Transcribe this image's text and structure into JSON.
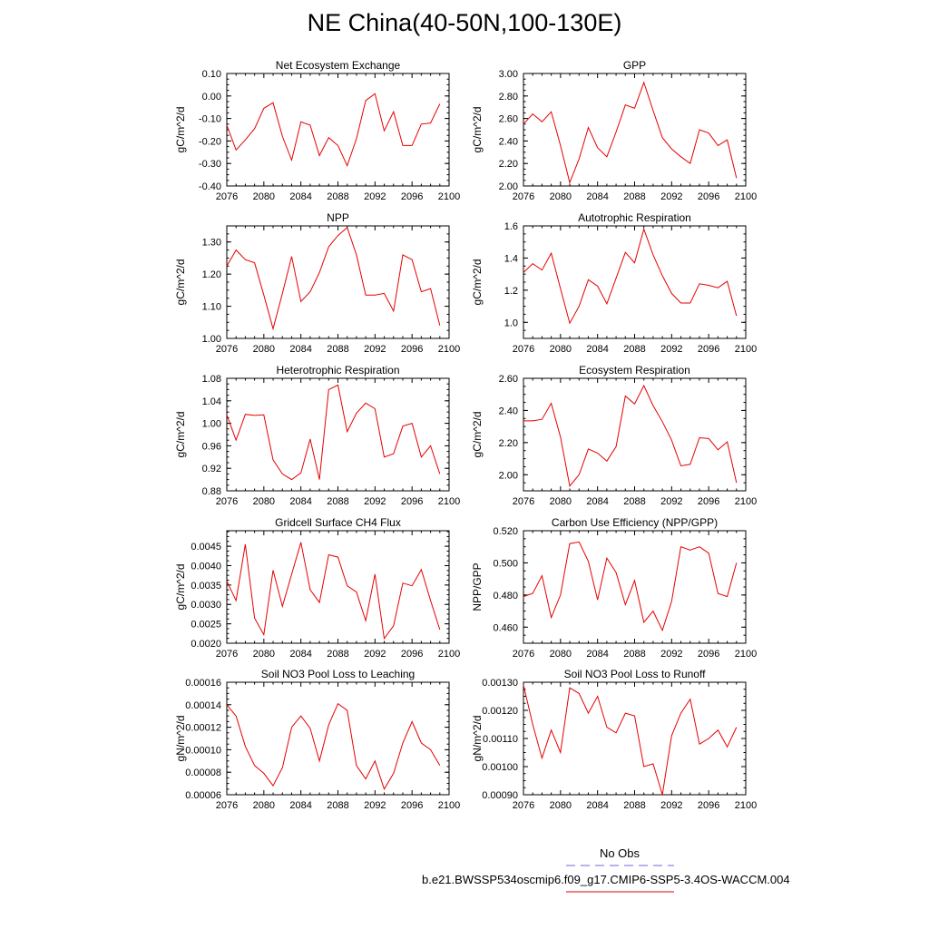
{
  "page": {
    "title": "NE China(40-50N,100-130E)"
  },
  "legend": {
    "obs_label": "No Obs",
    "obs_color": "#6b6bd6",
    "model_label": "b.e21.BWSSP534oscmip6.f09_g17.CMIP6-SSP5-3.4OS-WACCM.004",
    "model_color": "#e60000"
  },
  "chart_data": [
    {
      "type": "line",
      "title": "Net Ecosystem Exchange",
      "ylabel": "gC/m^2/d",
      "xlim": [
        2076,
        2100
      ],
      "xticks": [
        "2076",
        "2080",
        "2084",
        "2088",
        "2092",
        "2096",
        "2100"
      ],
      "ylim": [
        -0.4,
        0.1
      ],
      "yticks": [
        "-0.40",
        "-0.30",
        "-0.20",
        "-0.10",
        "0.00",
        "0.10"
      ],
      "x": [
        2076,
        2077,
        2078,
        2079,
        2080,
        2081,
        2082,
        2083,
        2084,
        2085,
        2086,
        2087,
        2088,
        2089,
        2090,
        2091,
        2092,
        2093,
        2094,
        2095,
        2096,
        2097,
        2098,
        2099
      ],
      "series": [
        {
          "values": [
            -0.13,
            -0.24,
            -0.195,
            -0.145,
            -0.055,
            -0.03,
            -0.18,
            -0.285,
            -0.115,
            -0.13,
            -0.265,
            -0.185,
            -0.22,
            -0.31,
            -0.19,
            -0.02,
            0.01,
            -0.155,
            -0.07,
            -0.22,
            -0.22,
            -0.125,
            -0.12,
            -0.035
          ]
        }
      ]
    },
    {
      "type": "line",
      "title": "GPP",
      "ylabel": "gC/m^2/d",
      "xlim": [
        2076,
        2100
      ],
      "xticks": [
        "2076",
        "2080",
        "2084",
        "2088",
        "2092",
        "2096",
        "2100"
      ],
      "ylim": [
        2.0,
        3.0
      ],
      "yticks": [
        "2.00",
        "2.20",
        "2.40",
        "2.60",
        "2.80",
        "3.00"
      ],
      "x": [
        2076,
        2077,
        2078,
        2079,
        2080,
        2081,
        2082,
        2083,
        2084,
        2085,
        2086,
        2087,
        2088,
        2089,
        2090,
        2091,
        2092,
        2093,
        2094,
        2095,
        2096,
        2097,
        2098,
        2099
      ],
      "series": [
        {
          "values": [
            2.55,
            2.64,
            2.57,
            2.66,
            2.36,
            2.03,
            2.24,
            2.52,
            2.34,
            2.26,
            2.48,
            2.72,
            2.69,
            2.92,
            2.67,
            2.43,
            2.33,
            2.26,
            2.2,
            2.5,
            2.47,
            2.36,
            2.41,
            2.07
          ]
        }
      ]
    },
    {
      "type": "line",
      "title": "NPP",
      "ylabel": "gC/m^2/d",
      "xlim": [
        2076,
        2100
      ],
      "xticks": [
        "2076",
        "2080",
        "2084",
        "2088",
        "2092",
        "2096",
        "2100"
      ],
      "ylim": [
        1.0,
        1.35
      ],
      "yticks": [
        "1.00",
        "1.10",
        "1.20",
        "1.30"
      ],
      "x": [
        2076,
        2077,
        2078,
        2079,
        2080,
        2081,
        2082,
        2083,
        2084,
        2085,
        2086,
        2087,
        2088,
        2089,
        2090,
        2091,
        2092,
        2093,
        2094,
        2095,
        2096,
        2097,
        2098,
        2099
      ],
      "series": [
        {
          "values": [
            1.225,
            1.275,
            1.245,
            1.235,
            1.135,
            1.03,
            1.14,
            1.255,
            1.115,
            1.145,
            1.205,
            1.285,
            1.32,
            1.345,
            1.26,
            1.135,
            1.135,
            1.14,
            1.085,
            1.26,
            1.245,
            1.145,
            1.155,
            1.04
          ]
        }
      ]
    },
    {
      "type": "line",
      "title": "Autotrophic Respiration",
      "ylabel": "gC/m^2/d",
      "xlim": [
        2076,
        2100
      ],
      "xticks": [
        "2076",
        "2080",
        "2084",
        "2088",
        "2092",
        "2096",
        "2100"
      ],
      "ylim": [
        0.9,
        1.6
      ],
      "yticks": [
        "1.0",
        "1.2",
        "1.4",
        "1.6"
      ],
      "x": [
        2076,
        2077,
        2078,
        2079,
        2080,
        2081,
        2082,
        2083,
        2084,
        2085,
        2086,
        2087,
        2088,
        2089,
        2090,
        2091,
        2092,
        2093,
        2094,
        2095,
        2096,
        2097,
        2098,
        2099
      ],
      "series": [
        {
          "values": [
            1.31,
            1.365,
            1.325,
            1.43,
            1.21,
            0.995,
            1.1,
            1.265,
            1.225,
            1.115,
            1.275,
            1.435,
            1.37,
            1.58,
            1.42,
            1.29,
            1.18,
            1.12,
            1.12,
            1.24,
            1.23,
            1.215,
            1.255,
            1.04
          ]
        }
      ]
    },
    {
      "type": "line",
      "title": "Heterotrophic Respiration",
      "ylabel": "gC/m^2/d",
      "xlim": [
        2076,
        2100
      ],
      "xticks": [
        "2076",
        "2080",
        "2084",
        "2088",
        "2092",
        "2096",
        "2100"
      ],
      "ylim": [
        0.88,
        1.08
      ],
      "yticks": [
        "0.88",
        "0.92",
        "0.96",
        "1.00",
        "1.04",
        "1.08"
      ],
      "x": [
        2076,
        2077,
        2078,
        2079,
        2080,
        2081,
        2082,
        2083,
        2084,
        2085,
        2086,
        2087,
        2088,
        2089,
        2090,
        2091,
        2092,
        2093,
        2094,
        2095,
        2096,
        2097,
        2098,
        2099
      ],
      "series": [
        {
          "values": [
            1.015,
            0.97,
            1.016,
            1.014,
            1.015,
            0.935,
            0.91,
            0.9,
            0.912,
            0.972,
            0.9,
            1.06,
            1.068,
            0.985,
            1.018,
            1.036,
            1.026,
            0.94,
            0.946,
            0.995,
            1.0,
            0.94,
            0.96,
            0.91
          ]
        }
      ]
    },
    {
      "type": "line",
      "title": "Ecosystem Respiration",
      "ylabel": "gC/m^2/d",
      "xlim": [
        2076,
        2100
      ],
      "xticks": [
        "2076",
        "2080",
        "2084",
        "2088",
        "2092",
        "2096",
        "2100"
      ],
      "ylim": [
        1.9,
        2.6
      ],
      "yticks": [
        "2.00",
        "2.20",
        "2.40",
        "2.60"
      ],
      "x": [
        2076,
        2077,
        2078,
        2079,
        2080,
        2081,
        2082,
        2083,
        2084,
        2085,
        2086,
        2087,
        2088,
        2089,
        2090,
        2091,
        2092,
        2093,
        2094,
        2095,
        2096,
        2097,
        2098,
        2099
      ],
      "series": [
        {
          "values": [
            2.335,
            2.335,
            2.345,
            2.445,
            2.235,
            1.93,
            2.0,
            2.16,
            2.135,
            2.085,
            2.175,
            2.49,
            2.44,
            2.555,
            2.43,
            2.33,
            2.215,
            2.055,
            2.065,
            2.23,
            2.225,
            2.155,
            2.205,
            1.95
          ]
        }
      ]
    },
    {
      "type": "line",
      "title": "Gridcell Surface CH4 Flux",
      "ylabel": "gC/m^2/d",
      "xlim": [
        2076,
        2100
      ],
      "xticks": [
        "2076",
        "2080",
        "2084",
        "2088",
        "2092",
        "2096",
        "2100"
      ],
      "ylim": [
        0.002,
        0.0049
      ],
      "yticks": [
        "0.0020",
        "0.0025",
        "0.0030",
        "0.0035",
        "0.0040",
        "0.0045"
      ],
      "x": [
        2076,
        2077,
        2078,
        2079,
        2080,
        2081,
        2082,
        2083,
        2084,
        2085,
        2086,
        2087,
        2088,
        2089,
        2090,
        2091,
        2092,
        2093,
        2094,
        2095,
        2096,
        2097,
        2098,
        2099
      ],
      "series": [
        {
          "values": [
            0.0036,
            0.0031,
            0.00455,
            0.00265,
            0.00222,
            0.00388,
            0.00295,
            0.00378,
            0.0046,
            0.00338,
            0.00305,
            0.00428,
            0.00422,
            0.00348,
            0.00332,
            0.00258,
            0.00378,
            0.00212,
            0.00245,
            0.00355,
            0.00348,
            0.0039,
            0.0031,
            0.00235
          ]
        }
      ]
    },
    {
      "type": "line",
      "title": "Carbon Use Efficiency (NPP/GPP)",
      "ylabel": "NPP/GPP",
      "xlim": [
        2076,
        2100
      ],
      "xticks": [
        "2076",
        "2080",
        "2084",
        "2088",
        "2092",
        "2096",
        "2100"
      ],
      "ylim": [
        0.45,
        0.52
      ],
      "yticks": [
        "0.460",
        "0.480",
        "0.500",
        "0.520"
      ],
      "x": [
        2076,
        2077,
        2078,
        2079,
        2080,
        2081,
        2082,
        2083,
        2084,
        2085,
        2086,
        2087,
        2088,
        2089,
        2090,
        2091,
        2092,
        2093,
        2094,
        2095,
        2096,
        2097,
        2098,
        2099
      ],
      "series": [
        {
          "values": [
            0.479,
            0.481,
            0.492,
            0.466,
            0.48,
            0.512,
            0.513,
            0.501,
            0.477,
            0.503,
            0.494,
            0.474,
            0.489,
            0.463,
            0.47,
            0.458,
            0.476,
            0.51,
            0.508,
            0.51,
            0.506,
            0.481,
            0.479,
            0.5
          ]
        }
      ]
    },
    {
      "type": "line",
      "title": "Soil NO3 Pool Loss to Leaching",
      "ylabel": "gN/m^2/d",
      "xlim": [
        2076,
        2100
      ],
      "xticks": [
        "2076",
        "2080",
        "2084",
        "2088",
        "2092",
        "2096",
        "2100"
      ],
      "ylim": [
        6e-05,
        0.00016
      ],
      "yticks": [
        "0.00006",
        "0.00008",
        "0.00010",
        "0.00012",
        "0.00014",
        "0.00016"
      ],
      "x": [
        2076,
        2077,
        2078,
        2079,
        2080,
        2081,
        2082,
        2083,
        2084,
        2085,
        2086,
        2087,
        2088,
        2089,
        2090,
        2091,
        2092,
        2093,
        2094,
        2095,
        2096,
        2097,
        2098,
        2099
      ],
      "series": [
        {
          "values": [
            0.00014,
            0.00013,
            0.000103,
            8.6e-05,
            7.9e-05,
            6.8e-05,
            8.4e-05,
            0.00012,
            0.00013,
            0.000119,
            9e-05,
            0.000122,
            0.000141,
            0.000135,
            8.6e-05,
            7.4e-05,
            9e-05,
            6.5e-05,
            7.9e-05,
            0.000106,
            0.000125,
            0.000106,
            0.0001,
            8.6e-05
          ]
        }
      ]
    },
    {
      "type": "line",
      "title": "Soil NO3 Pool Loss to Runoff",
      "ylabel": "gN/m^2/d",
      "xlim": [
        2076,
        2100
      ],
      "xticks": [
        "2076",
        "2080",
        "2084",
        "2088",
        "2092",
        "2096",
        "2100"
      ],
      "ylim": [
        0.0009,
        0.0013
      ],
      "yticks": [
        "0.00090",
        "0.00100",
        "0.00110",
        "0.00120",
        "0.00130"
      ],
      "x": [
        2076,
        2077,
        2078,
        2079,
        2080,
        2081,
        2082,
        2083,
        2084,
        2085,
        2086,
        2087,
        2088,
        2089,
        2090,
        2091,
        2092,
        2093,
        2094,
        2095,
        2096,
        2097,
        2098,
        2099
      ],
      "series": [
        {
          "values": [
            0.00129,
            0.00115,
            0.00103,
            0.00113,
            0.00105,
            0.00128,
            0.00126,
            0.00119,
            0.00125,
            0.00114,
            0.00112,
            0.00119,
            0.00118,
            0.001,
            0.00101,
            0.0009,
            0.00111,
            0.00119,
            0.00124,
            0.00108,
            0.0011,
            0.00113,
            0.00107,
            0.00114
          ]
        }
      ]
    }
  ]
}
